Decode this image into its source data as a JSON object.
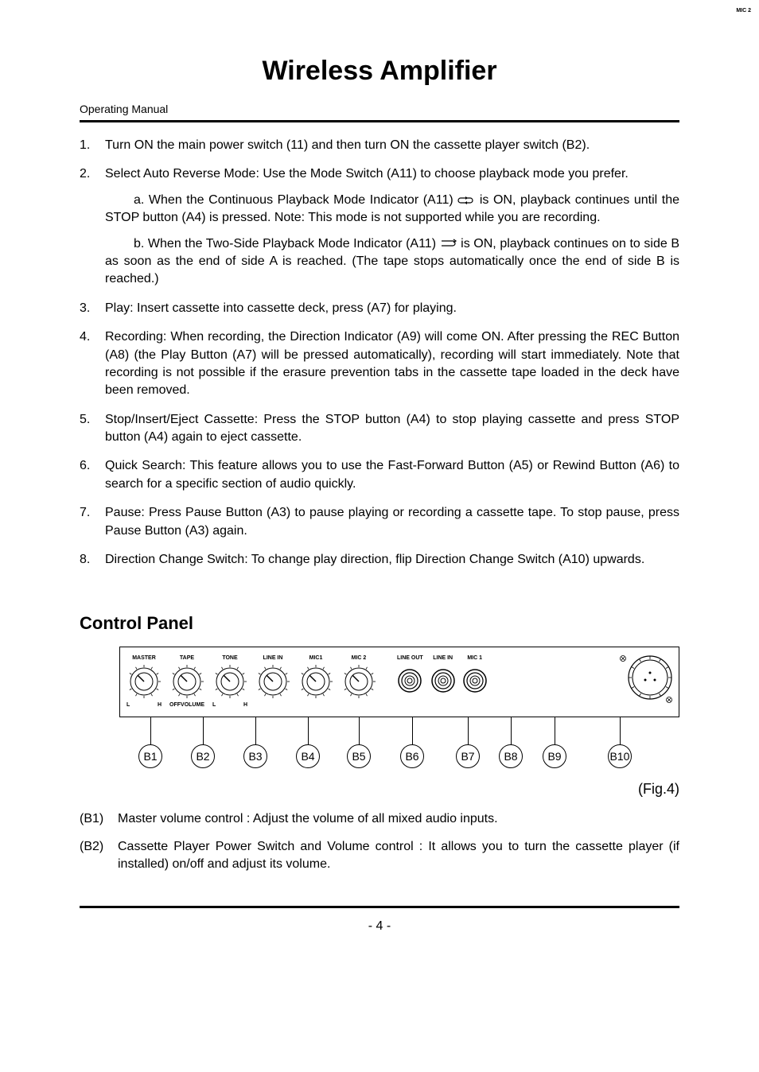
{
  "title": "Wireless  Amplifier",
  "subtitle": "Operating  Manual",
  "steps": [
    {
      "text": "Turn ON the main power switch (11) and then turn ON the cassette player switch (B2).",
      "subs": []
    },
    {
      "text": "Select Auto Reverse Mode: Use the Mode Switch (A11) to choose playback mode you prefer.",
      "subs": [
        {
          "prefix": "a.",
          "before": "When the Continuous Playback Mode Indicator (A11) ",
          "icon": "loop-closed",
          "after": " is ON, playback continues until the STOP button (A4) is pressed.  Note: This mode is not supported while you are recording."
        },
        {
          "prefix": "b.",
          "before": "When the Two-Side Playback Mode Indicator (A11) ",
          "icon": "loop-open",
          "after": "  is ON, playback continues on to side B as soon as the end of side A is reached. (The tape stops automatically once the end of side B is reached.)"
        }
      ]
    },
    {
      "text": "Play: Insert cassette into cassette deck, press (A7) for playing.",
      "subs": []
    },
    {
      "text": "Recording: When recording, the Direction Indicator (A9) will come ON.  After pressing the REC Button (A8) (the Play Button (A7) will be pressed automatically), recording will start immediately.  Note that recording is not possible if the erasure prevention tabs in the cassette tape loaded in the deck have been removed.",
      "subs": []
    },
    {
      "text": "Stop/Insert/Eject Cassette: Press the STOP button (A4) to stop playing cassette and press STOP button (A4) again to eject cassette.",
      "subs": []
    },
    {
      "text": "Quick Search: This feature allows you to use the Fast-Forward Button (A5) or Rewind Button (A6) to search for a specific section of audio quickly.",
      "subs": []
    },
    {
      "text": "Pause: Press Pause Button (A3) to pause playing or recording a cassette tape.  To stop pause, press Pause Button (A3) again.",
      "subs": []
    },
    {
      "text": "Direction Change Switch: To change play direction, flip Direction Change Switch (A10) upwards.",
      "subs": []
    }
  ],
  "section_heading": "Control  Panel",
  "panel": {
    "knobs": [
      {
        "top": "MASTER",
        "left": "L",
        "right": "H"
      },
      {
        "top": "TAPE",
        "left": "OFF",
        "right": "VOLUME"
      },
      {
        "top": "TONE",
        "left": "L",
        "right": "H"
      },
      {
        "top": "LINE IN",
        "left": "",
        "right": ""
      },
      {
        "top": "MIC1",
        "left": "",
        "right": ""
      },
      {
        "top": "MIC 2",
        "left": "",
        "right": ""
      }
    ],
    "jacks": [
      {
        "label": "LINE OUT"
      },
      {
        "label": "LINE IN"
      },
      {
        "label": "MIC 1"
      }
    ],
    "big_knob_label": "MIC 2",
    "callouts": [
      "B1",
      "B2",
      "B3",
      "B4",
      "B5",
      "B6",
      "B7",
      "B8",
      "B9",
      "B10"
    ],
    "callout_offsets": [
      24,
      90,
      156,
      222,
      286,
      353,
      423,
      477,
      532,
      614
    ],
    "fig_label": "(Fig.4)"
  },
  "descriptions": [
    {
      "num": "(B1)",
      "text": "Master volume control : Adjust the volume of all mixed audio inputs."
    },
    {
      "num": "(B2)",
      "text": "Cassette Player Power Switch and Volume control : It allows you to turn the cassette player (if installed) on/off and adjust its volume."
    }
  ],
  "page_number": "- 4 -",
  "colors": {
    "text": "#000000",
    "background": "#ffffff",
    "rule": "#000000"
  },
  "fonts": {
    "title_size": 34,
    "body_size": 16,
    "heading_size": 22
  }
}
